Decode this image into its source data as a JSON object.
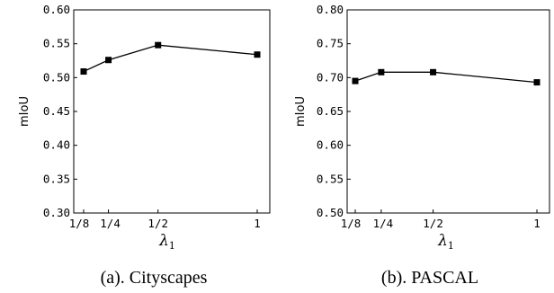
{
  "chart_data": [
    {
      "type": "line",
      "caption": "(a). Cityscapes",
      "ylabel": "mIoU",
      "xlabel": "λ",
      "xlabel_subscript": "1",
      "categories": [
        "1/8",
        "1/4",
        "1/2",
        "1"
      ],
      "x": [
        0.125,
        0.25,
        0.5,
        1.0
      ],
      "values": [
        0.509,
        0.526,
        0.548,
        0.534
      ],
      "ylim": [
        0.3,
        0.6
      ],
      "yticks": [
        "0.30",
        "0.35",
        "0.40",
        "0.45",
        "0.50",
        "0.55",
        "0.60"
      ],
      "grid": false,
      "marker": "square",
      "color": "#000000"
    },
    {
      "type": "line",
      "caption": "(b). PASCAL",
      "ylabel": "mIoU",
      "xlabel": "λ",
      "xlabel_subscript": "1",
      "categories": [
        "1/8",
        "1/4",
        "1/2",
        "1"
      ],
      "x": [
        0.125,
        0.25,
        0.5,
        1.0
      ],
      "values": [
        0.695,
        0.708,
        0.708,
        0.693
      ],
      "ylim": [
        0.5,
        0.8
      ],
      "yticks": [
        "0.50",
        "0.55",
        "0.60",
        "0.65",
        "0.70",
        "0.75",
        "0.80"
      ],
      "grid": false,
      "marker": "square",
      "color": "#000000"
    }
  ]
}
